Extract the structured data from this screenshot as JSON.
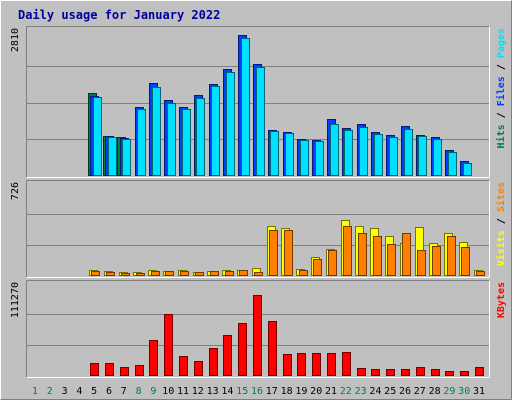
{
  "chart_data": {
    "type": "bar",
    "title": "Daily usage for January 2022",
    "days": [
      "1",
      "2",
      "3",
      "4",
      "5",
      "6",
      "7",
      "8",
      "9",
      "10",
      "11",
      "12",
      "13",
      "14",
      "15",
      "16",
      "17",
      "18",
      "19",
      "20",
      "21",
      "22",
      "23",
      "24",
      "25",
      "26",
      "27",
      "28",
      "29",
      "30",
      "31"
    ],
    "weekend_days": [
      1,
      2,
      8,
      9,
      15,
      16,
      22,
      23,
      29,
      30
    ],
    "panels": [
      {
        "id": "hits-files-pages",
        "max_label": "2810",
        "ymax": 2810,
        "legend": [
          {
            "text": "Hits",
            "color": "#008040"
          },
          {
            "text": " / ",
            "color": "#000000"
          },
          {
            "text": "Files",
            "color": "#0040ff"
          },
          {
            "text": " / ",
            "color": "#000000"
          },
          {
            "text": "Pages",
            "color": "#00e0ff"
          }
        ],
        "series": [
          {
            "name": "Hits",
            "color": "#008040",
            "values": [
              0,
              0,
              0,
              0,
              1610,
              770,
              740,
              0,
              0,
              0,
              0,
              0,
              0,
              0,
              0,
              0,
              0,
              0,
              0,
              0,
              0,
              0,
              0,
              0,
              0,
              0,
              0,
              0,
              0,
              0,
              0
            ]
          },
          {
            "name": "Files",
            "color": "#0040ff",
            "values": [
              0,
              0,
              0,
              0,
              1560,
              760,
              730,
              1330,
              1800,
              1470,
              1330,
              1570,
              1790,
              2080,
              2750,
              2180,
              880,
              850,
              700,
              680,
              1100,
              920,
              1000,
              850,
              780,
              970,
              790,
              750,
              490,
              270,
              0
            ]
          },
          {
            "name": "Pages",
            "color": "#00e0ff",
            "values": [
              0,
              0,
              0,
              0,
              1530,
              740,
              700,
              1300,
              1720,
              1420,
              1290,
              1510,
              1740,
              2030,
              2690,
              2120,
              860,
              820,
              680,
              670,
              1010,
              880,
              940,
              810,
              750,
              900,
              770,
              710,
              450,
              240,
              0
            ]
          }
        ]
      },
      {
        "id": "visits-sites",
        "max_label": "726",
        "ymax": 726,
        "legend": [
          {
            "text": "Visits",
            "color": "#ffff00"
          },
          {
            "text": " / ",
            "color": "#000000"
          },
          {
            "text": "Sites",
            "color": "#ff8000"
          }
        ],
        "series": [
          {
            "name": "Visits",
            "color": "#ffff00",
            "values": [
              0,
              0,
              0,
              0,
              40,
              30,
              25,
              25,
              40,
              35,
              38,
              28,
              35,
              38,
              42,
              55,
              400,
              385,
              50,
              145,
              210,
              445,
              400,
              380,
              320,
              260,
              395,
              260,
              340,
              270,
              40
            ]
          },
          {
            "name": "Sites",
            "color": "#ff8000",
            "values": [
              0,
              0,
              0,
              0,
              30,
              25,
              20,
              20,
              30,
              30,
              32,
              22,
              30,
              32,
              38,
              22,
              370,
              370,
              42,
              130,
              200,
              400,
              340,
              315,
              255,
              345,
              205,
              240,
              315,
              225,
              35
            ]
          }
        ]
      },
      {
        "id": "kbytes",
        "max_label": "111270",
        "ymax": 111270,
        "legend": [
          {
            "text": "KBytes",
            "color": "#ff0000"
          }
        ],
        "series": [
          {
            "name": "KBytes",
            "color": "#ff0000",
            "values": [
              0,
              0,
              0,
              0,
              15000,
              15000,
              10000,
              12500,
              44000,
              76000,
              24000,
              17000,
              34000,
              50000,
              65000,
              100000,
              67000,
              26000,
              27000,
              27000,
              27000,
              29000,
              9000,
              8000,
              7000,
              8000,
              9500,
              7500,
              5000,
              4500,
              10000
            ]
          }
        ]
      }
    ]
  }
}
